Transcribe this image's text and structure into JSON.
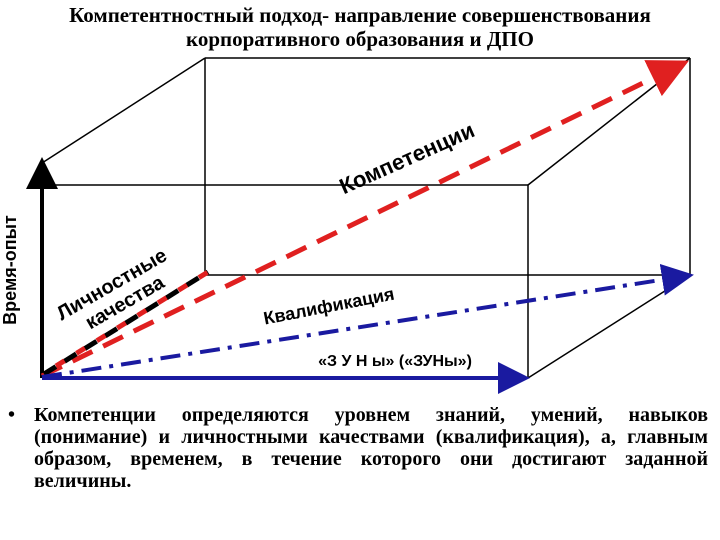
{
  "title": {
    "line1": "Компетентностный подход- направление совершенствования",
    "line2": "корпоративного образования и ДПО"
  },
  "diagram": {
    "axis_label": "Время-опыт",
    "competencies": "Компетенции",
    "personal_line1": "Личностные",
    "personal_line2": "качества",
    "qualification": "Квалификация",
    "zun": "«З У Н ы» («ЗУНы»)"
  },
  "bullet": "Компетенции определяются уровнем знаний, умений, навыков (понимание) и личностными качествами (квалификация), а, главным образом, временем, в течение которого они достигают заданной величины."
}
